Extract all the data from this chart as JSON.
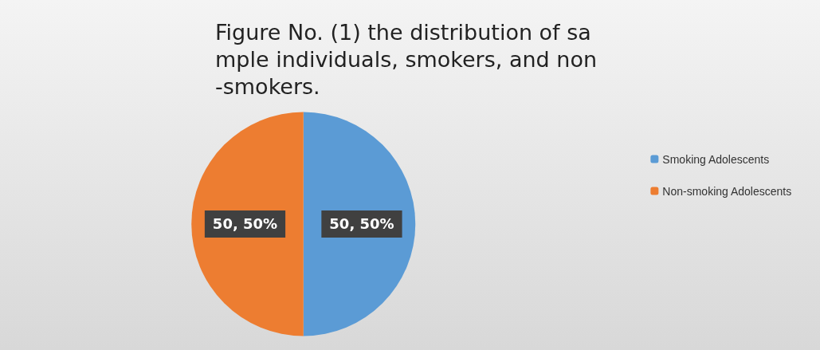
{
  "chart_data": {
    "type": "pie",
    "title": "Figure No. (1) the distribution of sa\nmple individuals, smokers, and non\n-smokers.",
    "categories": [
      "Smoking Adolescents",
      "Non-smoking Adolescents"
    ],
    "values": [
      50,
      50
    ],
    "colors": [
      "#5b9bd5",
      "#ed7d31"
    ],
    "value_labels": [
      "50, 50%",
      "50, 50%"
    ],
    "legend": "right"
  }
}
